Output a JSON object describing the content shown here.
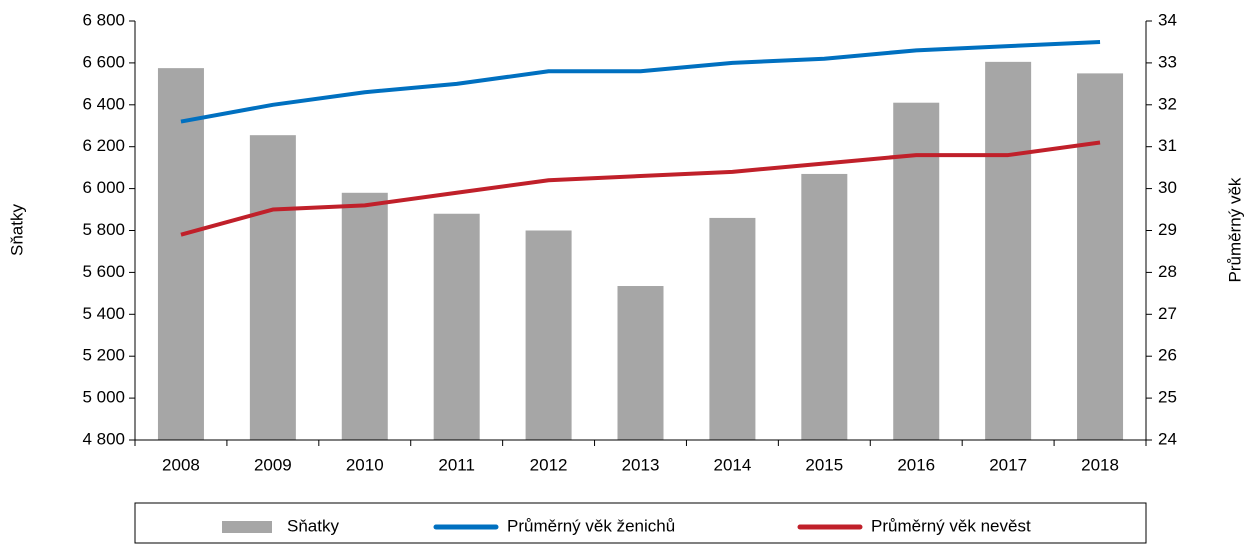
{
  "chart_data": {
    "type": "bar",
    "categories": [
      "2008",
      "2009",
      "2010",
      "2011",
      "2012",
      "2013",
      "2014",
      "2015",
      "2016",
      "2017",
      "2018"
    ],
    "series": [
      {
        "name": "Sňatky",
        "type": "bar",
        "color": "#a6a6a6",
        "axis": "y",
        "values": [
          6575,
          6255,
          5980,
          5880,
          5800,
          5535,
          5860,
          6070,
          6410,
          6605,
          6550
        ]
      },
      {
        "name": "Průměrný věk ženichů",
        "type": "line",
        "color": "#0070c0",
        "axis": "y2",
        "values": [
          31.6,
          32.0,
          32.3,
          32.5,
          32.8,
          32.8,
          33.0,
          33.1,
          33.3,
          33.4,
          33.5
        ]
      },
      {
        "name": "Průměrný věk nevěst",
        "type": "line",
        "color": "#c0202a",
        "axis": "y2",
        "values": [
          28.9,
          29.5,
          29.6,
          29.9,
          30.2,
          30.3,
          30.4,
          30.6,
          30.8,
          30.8,
          31.1
        ]
      }
    ],
    "ylabel": "Sňatky",
    "y2label": "Průměrný věk",
    "ylim": [
      4800,
      6800
    ],
    "yticks": [
      {
        "value": 4800,
        "label": "4 800"
      },
      {
        "value": 5000,
        "label": "5 000"
      },
      {
        "value": 5200,
        "label": "5 200"
      },
      {
        "value": 5400,
        "label": "5 400"
      },
      {
        "value": 5600,
        "label": "5 600"
      },
      {
        "value": 5800,
        "label": "5 800"
      },
      {
        "value": 6000,
        "label": "6 000"
      },
      {
        "value": 6200,
        "label": "6 200"
      },
      {
        "value": 6400,
        "label": "6 400"
      },
      {
        "value": 6600,
        "label": "6 600"
      },
      {
        "value": 6800,
        "label": "6 800"
      }
    ],
    "y2lim": [
      24,
      34
    ],
    "y2ticks": [
      24,
      25,
      26,
      27,
      28,
      29,
      30,
      31,
      32,
      33,
      34
    ],
    "grid": false,
    "legend": "bottom"
  }
}
